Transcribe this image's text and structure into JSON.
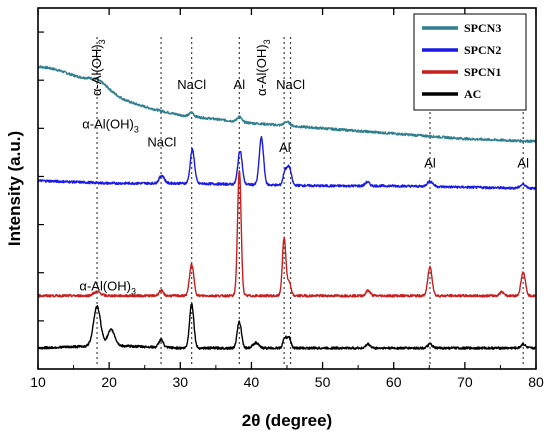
{
  "chart_data": {
    "type": "line",
    "xlabel": "2θ (degree)",
    "ylabel": "Intensity (a.u.)",
    "xlim": [
      10,
      80
    ],
    "xticks": [
      10,
      20,
      30,
      40,
      50,
      60,
      70,
      80
    ],
    "y_tick_labels_shown": false,
    "legend_position": "top-right",
    "series": [
      {
        "name": "SPCN3",
        "color": "#2f7f8f",
        "offset": 100,
        "peaks": [
          [
            12,
            8,
            6
          ],
          [
            18.5,
            3,
            1.5
          ],
          [
            31.6,
            1.5,
            0.3
          ],
          [
            38.3,
            2,
            0.3
          ],
          [
            45,
            1.5,
            0.4
          ]
        ],
        "baseline": [
          [
            10,
            0
          ],
          [
            20,
            -6
          ],
          [
            30,
            -11
          ],
          [
            40,
            -14
          ],
          [
            50,
            -16
          ],
          [
            60,
            -18
          ],
          [
            70,
            -20
          ],
          [
            80,
            -21
          ]
        ]
      },
      {
        "name": "SPCN2",
        "color": "#1a1ae6",
        "offset": 64,
        "peaks": [
          [
            27.4,
            3,
            0.35
          ],
          [
            31.7,
            13,
            0.3
          ],
          [
            38.4,
            13,
            0.3
          ],
          [
            41.4,
            18,
            0.3
          ],
          [
            44.7,
            5,
            0.25
          ],
          [
            45.3,
            7,
            0.3
          ],
          [
            56.3,
            1.5,
            0.3
          ],
          [
            65.1,
            2,
            0.4
          ],
          [
            78.2,
            1.5,
            0.4
          ]
        ],
        "baseline": [
          [
            10,
            0
          ],
          [
            20,
            -1
          ],
          [
            30,
            -1
          ],
          [
            40,
            -1.5
          ],
          [
            50,
            -2
          ],
          [
            60,
            -2
          ],
          [
            70,
            -2.5
          ],
          [
            80,
            -3
          ]
        ]
      },
      {
        "name": "SPCN1",
        "color": "#c81e1e",
        "offset": 20,
        "peaks": [
          [
            18.3,
            1.5,
            0.5
          ],
          [
            27.3,
            2,
            0.3
          ],
          [
            31.6,
            12,
            0.3
          ],
          [
            38.3,
            48,
            0.25
          ],
          [
            44.6,
            22,
            0.25
          ],
          [
            45.3,
            5,
            0.25
          ],
          [
            56.4,
            2,
            0.3
          ],
          [
            65.1,
            11,
            0.3
          ],
          [
            75.2,
            1.5,
            0.3
          ],
          [
            78.2,
            9,
            0.3
          ]
        ],
        "baseline": [
          [
            10,
            0
          ],
          [
            20,
            0
          ],
          [
            30,
            0
          ],
          [
            40,
            0
          ],
          [
            50,
            0
          ],
          [
            60,
            0
          ],
          [
            70,
            0
          ],
          [
            80,
            0
          ]
        ]
      },
      {
        "name": "AC",
        "color": "#000000",
        "offset": 0,
        "peaks": [
          [
            18.3,
            15,
            0.5
          ],
          [
            20.3,
            6,
            0.5
          ],
          [
            27.3,
            3,
            0.3
          ],
          [
            31.6,
            17,
            0.3
          ],
          [
            38.3,
            10,
            0.3
          ],
          [
            40.6,
            2,
            0.4
          ],
          [
            44.7,
            4,
            0.25
          ],
          [
            45.3,
            4,
            0.25
          ],
          [
            56.4,
            1.5,
            0.3
          ],
          [
            65.1,
            1.5,
            0.3
          ],
          [
            78.2,
            1.5,
            0.3
          ]
        ],
        "baseline": [
          [
            10,
            0
          ],
          [
            20,
            1
          ],
          [
            30,
            0
          ],
          [
            40,
            0
          ],
          [
            50,
            0
          ],
          [
            60,
            0
          ],
          [
            70,
            0
          ],
          [
            80,
            0
          ]
        ]
      }
    ],
    "reference_lines_x": [
      18.3,
      27.3,
      31.6,
      38.3,
      44.6,
      45.5,
      65.1,
      78.2
    ],
    "annotations": [
      {
        "text": "α-Al(OH)",
        "sub": "3",
        "x": 18.3,
        "level": 118,
        "rotate": true
      },
      {
        "text": "α-Al(OH)",
        "sub": "3",
        "x": 20.2,
        "level": 84,
        "rotate": false
      },
      {
        "text": "NaCl",
        "x": 27.4,
        "level": 77,
        "rotate": false
      },
      {
        "text": "NaCl",
        "x": 31.6,
        "level": 99,
        "rotate": false
      },
      {
        "text": "Al",
        "x": 38.3,
        "level": 99,
        "rotate": false
      },
      {
        "text": "α-Al(OH)",
        "sub": "3",
        "x": 41.5,
        "level": 118,
        "rotate": true
      },
      {
        "text": "NaCl",
        "x": 45.5,
        "level": 99,
        "rotate": false
      },
      {
        "text": "Al",
        "x": 44.7,
        "level": 75,
        "rotate": false
      },
      {
        "text": "Al",
        "x": 65.1,
        "level": 69,
        "rotate": false
      },
      {
        "text": "Al",
        "x": 78.2,
        "level": 69,
        "rotate": false
      },
      {
        "text": "α-Al(OH)",
        "sub": "3",
        "x": 19.8,
        "level": 22,
        "rotate": false
      }
    ]
  }
}
